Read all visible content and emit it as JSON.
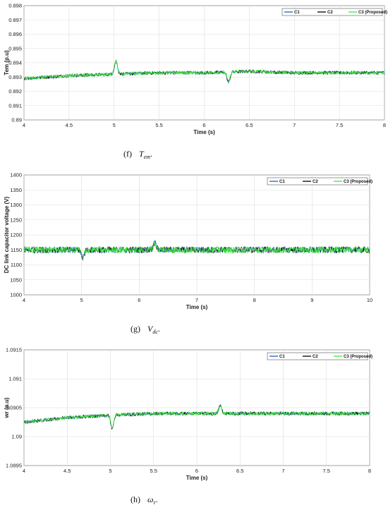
{
  "colors": {
    "C1": "#1f5fbf",
    "C2": "#000000",
    "C3": "#33ee33"
  },
  "chart_data": [
    {
      "type": "line",
      "ylabel": "Tem (p.u)",
      "xlabel": "Time (s)",
      "xlim": [
        4,
        8
      ],
      "ylim": [
        0.89,
        0.898
      ],
      "xticks": [
        "4",
        "4.5",
        "5",
        "5.5",
        "6",
        "6.5",
        "7",
        "7.5",
        "8"
      ],
      "yticks": [
        "0.89",
        "0.891",
        "0.892",
        "0.893",
        "0.894",
        "0.895",
        "0.896",
        "0.897",
        "0.898"
      ],
      "legend": {
        "position": "top-right",
        "entries": [
          "C1",
          "C2",
          "C3 (Proposed)"
        ]
      },
      "grid": true,
      "baseline": [
        [
          4,
          0.8929
        ],
        [
          4.5,
          0.8931
        ],
        [
          5.0,
          0.8932
        ],
        [
          5.5,
          0.8933
        ],
        [
          6.0,
          0.8933
        ],
        [
          6.5,
          0.8934
        ],
        [
          7.0,
          0.8933
        ],
        [
          7.5,
          0.8933
        ],
        [
          8,
          0.8933
        ]
      ],
      "noise": 0.00012,
      "events": [
        {
          "x": 5.02,
          "dy": 0.0009
        },
        {
          "x": 6.27,
          "dy": -0.0007
        }
      ],
      "caption": {
        "label": "(f)",
        "symbol": "T",
        "sub": "em",
        "tail": "."
      }
    },
    {
      "type": "line",
      "ylabel": "DC link capacitor voltage (V)",
      "xlabel": "Time (s)",
      "xlim": [
        4,
        10
      ],
      "ylim": [
        1000,
        1400
      ],
      "xticks": [
        "4",
        "5",
        "6",
        "7",
        "8",
        "9",
        "10"
      ],
      "yticks": [
        "1000",
        "1050",
        "1100",
        "1150",
        "1200",
        "1250",
        "1300",
        "1350",
        "1400"
      ],
      "legend": {
        "position": "top-right",
        "entries": [
          "C1",
          "C2",
          "C3 (Proposed)"
        ]
      },
      "grid": true,
      "baseline": [
        [
          4,
          1150
        ],
        [
          10,
          1150
        ]
      ],
      "noise": 11,
      "events": [
        {
          "x": 5.02,
          "dy": -25
        },
        {
          "x": 6.27,
          "dy": 25
        }
      ],
      "caption": {
        "label": "(g)",
        "symbol": "V",
        "sub": "dc",
        "tail": "."
      }
    },
    {
      "type": "line",
      "ylabel": "wr (p.u)",
      "xlabel": "Time (s)",
      "xlim": [
        4,
        8
      ],
      "ylim": [
        1.0895,
        1.0915
      ],
      "xticks": [
        "4",
        "4.5",
        "5",
        "5.5",
        "6",
        "6.5",
        "7",
        "7.5",
        "8"
      ],
      "yticks": [
        "1.0895",
        "1.09",
        "1.0905",
        "1.091",
        "1.0915"
      ],
      "legend": {
        "position": "top-right",
        "entries": [
          "C1",
          "C2",
          "C3 (Proposed)"
        ]
      },
      "grid": true,
      "baseline": [
        [
          4,
          1.09025
        ],
        [
          4.5,
          1.09033
        ],
        [
          5.0,
          1.09037
        ],
        [
          5.5,
          1.0904
        ],
        [
          6.0,
          1.0904
        ],
        [
          6.5,
          1.0904
        ],
        [
          7.0,
          1.0904
        ],
        [
          7.5,
          1.0904
        ],
        [
          8,
          1.0904
        ]
      ],
      "noise": 3e-05,
      "events": [
        {
          "x": 5.02,
          "dy": -0.00022
        },
        {
          "x": 6.27,
          "dy": 0.00014
        }
      ],
      "caption": {
        "label": "(h)",
        "symbol": "ω",
        "sub": "r",
        "tail": "."
      }
    }
  ]
}
